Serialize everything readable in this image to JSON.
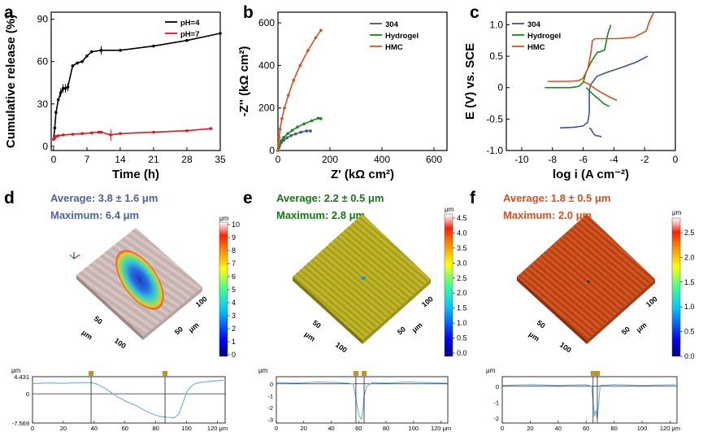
{
  "colors": {
    "black": "#000000",
    "red": "#e8141c",
    "blue": "#3d5699",
    "green": "#138a1b",
    "orange": "#d9501c",
    "stat_blue": "#4a63a8",
    "stat_green": "#127a12",
    "stat_orange": "#d9501c"
  },
  "chart_data": [
    {
      "panel": "a",
      "type": "line",
      "xlabel": "Time (h)",
      "ylabel": "Cumulative release (%)",
      "xlim": [
        -0.5,
        35
      ],
      "ylim": [
        -3,
        95
      ],
      "xticks": [
        0,
        7,
        14,
        21,
        28,
        35
      ],
      "yticks": [
        0,
        30,
        60,
        90
      ],
      "legend_position": "top-right",
      "series": [
        {
          "name": "pH=4",
          "color": "#000000",
          "x": [
            0,
            0.25,
            0.5,
            1,
            1.5,
            2,
            2.5,
            3,
            4,
            5,
            6,
            7,
            8,
            10,
            14,
            21,
            28,
            35
          ],
          "y": [
            5,
            13,
            24,
            33,
            38,
            41,
            41,
            42,
            57,
            59,
            60,
            64,
            67,
            68,
            68,
            71,
            75,
            80
          ]
        },
        {
          "name": "pH=7",
          "color": "#e8141c",
          "x": [
            0,
            0.25,
            0.5,
            1,
            2,
            4,
            6,
            8,
            9.5,
            10,
            12,
            14,
            21,
            28,
            33
          ],
          "y": [
            5,
            6,
            7,
            7.5,
            8,
            8.5,
            9,
            9.5,
            10,
            10,
            8,
            9,
            10,
            11,
            12.5
          ]
        }
      ]
    },
    {
      "panel": "b",
      "type": "line",
      "xlabel": "Z' (kΩ cm²)",
      "ylabel": "-Z'' (kΩ cm²)",
      "xlim": [
        0,
        650
      ],
      "ylim": [
        0,
        650
      ],
      "xticks": [
        0,
        200,
        400,
        600
      ],
      "yticks": [
        0,
        200,
        400,
        600
      ],
      "legend_position": "top-right",
      "series": [
        {
          "name": "304",
          "color": "#3d5699",
          "x": [
            0,
            3,
            6,
            12,
            22,
            35,
            50,
            68,
            88,
            110,
            125
          ],
          "y": [
            0,
            12,
            22,
            35,
            48,
            60,
            70,
            78,
            86,
            92,
            92
          ]
        },
        {
          "name": "Hydrogel",
          "color": "#138a1b",
          "x": [
            0,
            3,
            6,
            12,
            22,
            38,
            55,
            75,
            100,
            130,
            155,
            165
          ],
          "y": [
            0,
            15,
            28,
            45,
            62,
            80,
            95,
            110,
            125,
            140,
            152,
            150
          ]
        },
        {
          "name": "HMC",
          "color": "#d9501c",
          "x": [
            0,
            2,
            4,
            8,
            15,
            25,
            40,
            60,
            85,
            115,
            145,
            165
          ],
          "y": [
            0,
            30,
            60,
            100,
            150,
            200,
            260,
            330,
            400,
            470,
            530,
            565
          ]
        }
      ]
    },
    {
      "panel": "c",
      "type": "line",
      "xlabel": "log i (A cm⁻²)",
      "ylabel": "E (V) vs. SCE",
      "xlim": [
        -11,
        0
      ],
      "ylim": [
        -1.0,
        1.2
      ],
      "xticks": [
        -10,
        -8,
        -6,
        -4,
        -2,
        0
      ],
      "yticks": [
        -1.0,
        -0.5,
        0.0,
        0.5,
        1.0
      ],
      "legend_position": "top-left",
      "series": [
        {
          "name": "304",
          "color": "#3d5699",
          "x": [
            -7.5,
            -6.6,
            -6.0,
            -5.7,
            -5.6,
            -5.6,
            -5.5,
            -5.1,
            -4.5,
            -3.5,
            -2.5,
            -1.8,
            -5.6,
            -5.5,
            -5.4,
            -5.3,
            -5.2,
            -5.0,
            -4.8
          ],
          "y": [
            -0.64,
            -0.63,
            -0.61,
            -0.55,
            -0.4,
            -0.05,
            0.05,
            0.18,
            0.24,
            0.32,
            0.41,
            0.5,
            -0.64,
            -0.66,
            -0.7,
            -0.74,
            -0.76,
            -0.77,
            -0.78
          ]
        },
        {
          "name": "Hydrogel",
          "color": "#138a1b",
          "x": [
            -8.5,
            -7.5,
            -6.8,
            -6.3,
            -6.0,
            -5.8,
            -5.5,
            -5.2,
            -5.1,
            -4.9,
            -4.6,
            -4.4,
            -4.2,
            -5.8,
            -5.6,
            -5.3,
            -5.0,
            -4.7,
            -4.3
          ],
          "y": [
            0.0,
            0.0,
            0.0,
            0.02,
            0.08,
            0.25,
            0.4,
            0.52,
            0.56,
            0.57,
            0.6,
            0.85,
            1.0,
            0.0,
            -0.05,
            -0.12,
            -0.18,
            -0.25,
            -0.3
          ]
        },
        {
          "name": "HMC",
          "color": "#d9501c",
          "x": [
            -8.3,
            -7.0,
            -6.3,
            -6.0,
            -5.7,
            -5.5,
            -5.4,
            -5.2,
            -4.8,
            -3.8,
            -2.7,
            -1.9,
            -1.7,
            -1.4,
            -6.0,
            -5.6,
            -5.2,
            -4.8,
            -4.2,
            -3.8
          ],
          "y": [
            0.1,
            0.1,
            0.11,
            0.15,
            0.3,
            0.55,
            0.75,
            0.78,
            0.78,
            0.78,
            0.8,
            0.9,
            1.05,
            1.2,
            0.1,
            0.05,
            -0.02,
            -0.08,
            -0.16,
            -0.2
          ]
        }
      ]
    },
    {
      "panel": "d",
      "type": "line",
      "xlabel": "",
      "ylabel": "",
      "xticks": [
        0,
        20,
        40,
        60,
        80,
        100,
        120
      ],
      "ytick_labels": [
        "4.431",
        "0",
        "-7.569"
      ],
      "ylim": [
        -7.569,
        4.431
      ],
      "xlim": [
        0,
        125
      ],
      "series": [
        {
          "name": "",
          "color": "#6aaee0",
          "x": [
            0,
            10,
            20,
            30,
            38,
            42,
            48,
            55,
            60,
            68,
            75,
            82,
            88,
            92,
            95,
            98,
            100,
            103,
            106,
            110,
            115,
            120,
            124
          ],
          "y": [
            2.6,
            2.8,
            2.7,
            2.9,
            2.9,
            2.5,
            1.2,
            -0.8,
            -1.8,
            -3.2,
            -4.8,
            -5.8,
            -6.1,
            -6.2,
            -5.2,
            -2.0,
            0.5,
            2.0,
            2.7,
            3.0,
            3.2,
            3.4,
            3.5
          ]
        }
      ]
    },
    {
      "panel": "e",
      "type": "line",
      "xlabel": "",
      "ylabel": "",
      "xticks": [
        0,
        20,
        40,
        60,
        80,
        100,
        120
      ],
      "yticks": [
        0,
        -1,
        -2,
        -3
      ],
      "ylim": [
        -3.3,
        0.6
      ],
      "xlim": [
        0,
        125
      ],
      "series": [
        {
          "name": "",
          "color": "#6aaee0",
          "x": [
            0,
            15,
            30,
            45,
            52,
            56,
            58,
            60,
            62,
            63,
            64,
            66,
            70,
            80,
            95,
            110,
            124
          ],
          "y": [
            0.1,
            0.05,
            0.15,
            0.1,
            0.05,
            0.0,
            -1.2,
            -2.6,
            -3.0,
            -2.4,
            -1.0,
            -0.2,
            0.1,
            0.05,
            0.15,
            0.1,
            0.05
          ]
        }
      ]
    },
    {
      "panel": "f",
      "type": "line",
      "xlabel": "",
      "ylabel": "",
      "xticks": [
        0,
        20,
        40,
        60,
        80,
        100,
        120
      ],
      "yticks": [
        0,
        -1,
        -2
      ],
      "ylim": [
        -2.3,
        0.6
      ],
      "xlim": [
        0,
        125
      ],
      "series": [
        {
          "name": "",
          "color": "#6aaee0",
          "x": [
            0,
            20,
            40,
            60,
            64,
            65,
            66,
            67,
            68,
            69,
            70,
            80,
            100,
            124
          ],
          "y": [
            0.05,
            0.1,
            0.05,
            0.1,
            0.0,
            -1.0,
            -1.9,
            -1.5,
            -2.0,
            -1.0,
            0.05,
            0.1,
            0.05,
            0.1
          ]
        }
      ]
    }
  ],
  "panels": {
    "a": {
      "letter": "a",
      "ylabel": "Cumulative release (%)",
      "xlabel": "Time (h)",
      "xtick_labels": [
        "0",
        "7",
        "14",
        "21",
        "28",
        "35"
      ],
      "ytick_labels": [
        "0",
        "30",
        "60",
        "90"
      ],
      "legend": [
        "pH=4",
        "pH=7"
      ]
    },
    "b": {
      "letter": "b",
      "ylabel": "-Z'' (kΩ cm²)",
      "xlabel": "Z' (kΩ cm²)",
      "xtick_labels": [
        "0",
        "200",
        "400",
        "600"
      ],
      "ytick_labels": [
        "0",
        "200",
        "400",
        "600"
      ],
      "legend": [
        "304",
        "Hydrogel",
        "HMC"
      ]
    },
    "c": {
      "letter": "c",
      "ylabel": "E (V) vs. SCE",
      "xlabel": "log i (A cm⁻²)",
      "xtick_labels": [
        "-10",
        "-8",
        "-6",
        "-4",
        "-2",
        "0"
      ],
      "ytick_labels": [
        "-1.0",
        "-0.5",
        "0",
        "0.5",
        "1.0"
      ],
      "legend": [
        "304",
        "Hydrogel",
        "HMC"
      ]
    },
    "d": {
      "letter": "d",
      "average": "Average: 3.8 ± 1.6 μm",
      "maximum": "Maximum: 6.4 μm",
      "colorbar_ticks": [
        "10",
        "9",
        "8",
        "7",
        "6",
        "5",
        "4",
        "3",
        "2",
        "1",
        "0"
      ],
      "unit": "μm",
      "axis_ticks_left": [
        "50",
        "100"
      ],
      "axis_ticks_right": [
        "50",
        "100"
      ],
      "axis_unit": "μm",
      "profile_yticks": [
        "4.431",
        "0",
        "-7.569"
      ],
      "profile_xticks": [
        "0",
        "20",
        "40",
        "60",
        "80",
        "100",
        "120 μm"
      ]
    },
    "e": {
      "letter": "e",
      "average": "Average: 2.2 ± 0.5 μm",
      "maximum": "Maximum: 2.8 μm",
      "colorbar_ticks": [
        "4.5",
        "4.0",
        "3.5",
        "3.0",
        "2.5",
        "2.0",
        "1.5",
        "1.0",
        "0.5",
        "0.0"
      ],
      "unit": "μm",
      "axis_ticks_left": [
        "50",
        "100"
      ],
      "axis_ticks_right": [
        "50",
        "100"
      ],
      "axis_unit": "μm",
      "profile_yticks": [
        "0",
        "-1",
        "-2",
        "-3"
      ],
      "profile_xticks": [
        "0",
        "20",
        "40",
        "60",
        "80",
        "100",
        "120 μm"
      ]
    },
    "f": {
      "letter": "f",
      "average": "Average: 1.8 ± 0.5 μm",
      "maximum": "Maximum: 2.0 μm",
      "colorbar_ticks": [
        "2.5",
        "2.0",
        "1.5",
        "1.0",
        "0.5",
        "0.0"
      ],
      "unit": "μm",
      "axis_ticks_left": [
        "50",
        "100"
      ],
      "axis_ticks_right": [
        "50",
        "100"
      ],
      "axis_unit": "μm",
      "profile_yticks": [
        "0",
        "-1",
        "-2"
      ],
      "profile_xticks": [
        "0",
        "20",
        "40",
        "60",
        "80",
        "100",
        "120 μm"
      ]
    }
  }
}
